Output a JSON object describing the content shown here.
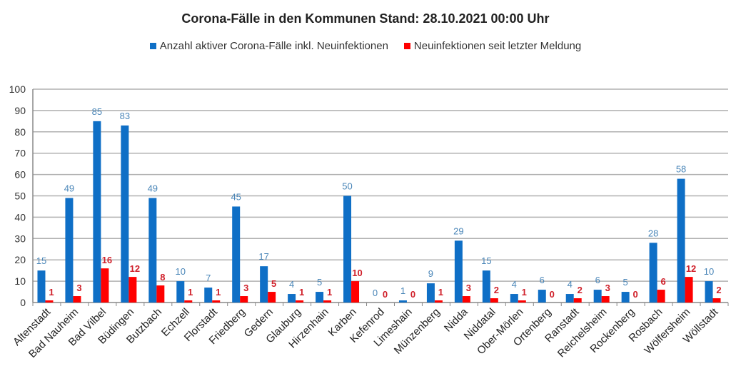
{
  "chart_data": {
    "type": "bar",
    "title": "Corona-Fälle in den Kommunen Stand: 28.10.2021 00:00 Uhr",
    "xlabel": "",
    "ylabel": "",
    "ylim": [
      0,
      100
    ],
    "yticks": [
      "0",
      "10",
      "20",
      "30",
      "40",
      "50",
      "60",
      "70",
      "80",
      "90",
      "100"
    ],
    "grid": true,
    "legend_position": "top-center",
    "categories": [
      "Altenstadt",
      "Bad Nauheim",
      "Bad Vilbel",
      "Büdingen",
      "Butzbach",
      "Echzell",
      "Florstadt",
      "Friedberg",
      "Gedern",
      "Glauburg",
      "Hirzenhain",
      "Karben",
      "Kefenrod",
      "Limeshain",
      "Münzenberg",
      "Nidda",
      "Niddatal",
      "Ober-Mörlen",
      "Ortenberg",
      "Ranstadt",
      "Reichelsheim",
      "Rockenberg",
      "Rosbach",
      "Wölfersheim",
      "Wöllstadt"
    ],
    "series": [
      {
        "name": "Anzahl aktiver Corona-Fälle inkl. Neuinfektionen",
        "color": "#0f6fc6",
        "label_color": "#4a86b8",
        "values": [
          15,
          49,
          85,
          83,
          49,
          10,
          7,
          45,
          17,
          4,
          5,
          50,
          0,
          1,
          9,
          29,
          15,
          4,
          6,
          4,
          6,
          5,
          28,
          58,
          10
        ]
      },
      {
        "name": "Neuinfektionen seit letzter Meldung",
        "color": "#ff0000",
        "label_color": "#d0202a",
        "values": [
          1,
          3,
          16,
          12,
          8,
          1,
          1,
          3,
          5,
          1,
          1,
          10,
          0,
          0,
          1,
          3,
          2,
          1,
          0,
          2,
          3,
          0,
          6,
          12,
          2
        ]
      }
    ]
  }
}
